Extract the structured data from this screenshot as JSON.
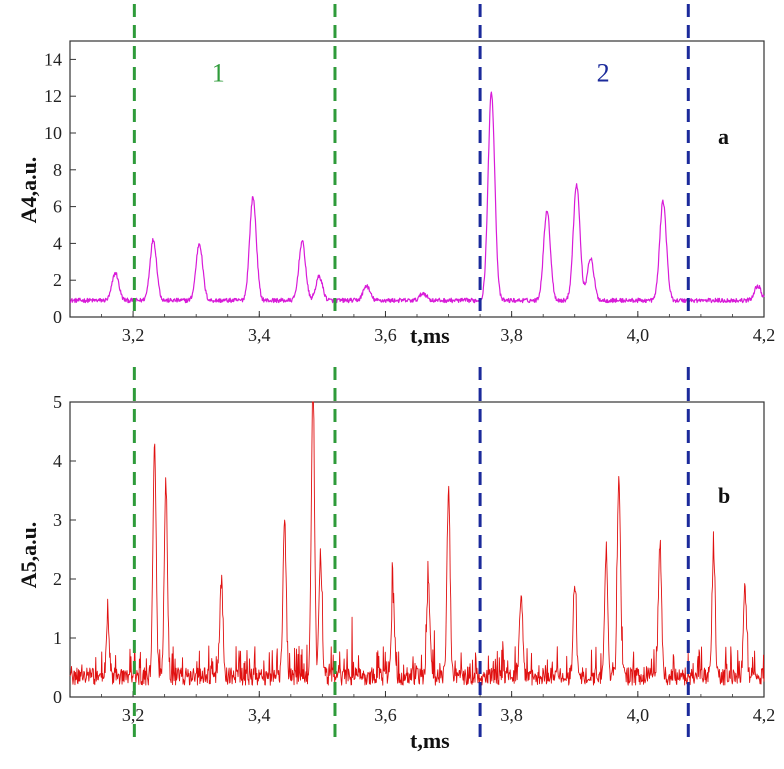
{
  "chart_data": [
    {
      "panel": "a",
      "type": "line",
      "title": "",
      "panel_letter": "a",
      "xlabel": "t,ms",
      "ylabel": "A4,a.u.",
      "xlim": [
        3.1,
        4.2
      ],
      "ylim": [
        0,
        15
      ],
      "xticks": [
        3.2,
        3.4,
        3.6,
        3.8,
        4.0,
        4.2
      ],
      "xtick_labels": [
        "3,2",
        "3,4",
        "3,6",
        "3,8",
        "4,0",
        "4,2"
      ],
      "yticks": [
        0,
        2,
        4,
        6,
        8,
        10,
        12,
        14
      ],
      "ytick_labels": [
        "0",
        "2",
        "4",
        "6",
        "8",
        "10",
        "12",
        "14"
      ],
      "series": [
        {
          "name": "A4",
          "color": "#d81bd8",
          "baseline": 0.9,
          "noise": 0.12,
          "peaks": [
            {
              "t": 3.172,
              "amp": 1.5
            },
            {
              "t": 3.232,
              "amp": 3.3
            },
            {
              "t": 3.305,
              "amp": 3.1
            },
            {
              "t": 3.39,
              "amp": 5.6
            },
            {
              "t": 3.468,
              "amp": 3.2
            },
            {
              "t": 3.495,
              "amp": 1.3
            },
            {
              "t": 3.57,
              "amp": 0.8
            },
            {
              "t": 3.66,
              "amp": 0.4
            },
            {
              "t": 3.768,
              "amp": 11.3
            },
            {
              "t": 3.856,
              "amp": 4.9
            },
            {
              "t": 3.903,
              "amp": 6.3
            },
            {
              "t": 3.925,
              "amp": 2.3
            },
            {
              "t": 4.04,
              "amp": 5.4
            },
            {
              "t": 4.19,
              "amp": 0.8
            }
          ]
        }
      ],
      "vlines": [
        {
          "t": 3.202,
          "color": "#2e9b3a",
          "group": "1"
        },
        {
          "t": 3.52,
          "color": "#2e9b3a",
          "group": "1"
        },
        {
          "t": 3.75,
          "color": "#1b2a9b",
          "group": "2"
        },
        {
          "t": 4.08,
          "color": "#1b2a9b",
          "group": "2"
        }
      ],
      "region_labels": [
        {
          "text": "1",
          "t": 3.335,
          "y": 12.8,
          "color": "#2e9b3a"
        },
        {
          "text": "2",
          "t": 3.945,
          "y": 12.8,
          "color": "#1b2a9b"
        }
      ]
    },
    {
      "panel": "b",
      "type": "line",
      "title": "",
      "panel_letter": "b",
      "xlabel": "t,ms",
      "ylabel": "A5,a.u.",
      "xlim": [
        3.1,
        4.2
      ],
      "ylim": [
        0,
        5
      ],
      "xticks": [
        3.2,
        3.4,
        3.6,
        3.8,
        4.0,
        4.2
      ],
      "xtick_labels": [
        "3,2",
        "3,4",
        "3,6",
        "3,8",
        "4,0",
        "4,2"
      ],
      "yticks": [
        0,
        1,
        2,
        3,
        4,
        5
      ],
      "ytick_labels": [
        "0",
        "1",
        "2",
        "3",
        "4",
        "5"
      ],
      "series": [
        {
          "name": "A5",
          "color": "#e01010",
          "baseline": 0.2,
          "noise": 0.3,
          "peaks": [
            {
              "t": 3.16,
              "amp": 0.9
            },
            {
              "t": 3.234,
              "amp": 4.0
            },
            {
              "t": 3.252,
              "amp": 3.3
            },
            {
              "t": 3.34,
              "amp": 1.6
            },
            {
              "t": 3.44,
              "amp": 2.7
            },
            {
              "t": 3.485,
              "amp": 4.8
            },
            {
              "t": 3.497,
              "amp": 2.0
            },
            {
              "t": 3.612,
              "amp": 1.4
            },
            {
              "t": 3.668,
              "amp": 1.6
            },
            {
              "t": 3.7,
              "amp": 3.2
            },
            {
              "t": 3.815,
              "amp": 1.4
            },
            {
              "t": 3.9,
              "amp": 1.6
            },
            {
              "t": 3.95,
              "amp": 2.0
            },
            {
              "t": 3.97,
              "amp": 3.4
            },
            {
              "t": 4.035,
              "amp": 2.3
            },
            {
              "t": 4.12,
              "amp": 2.1
            },
            {
              "t": 4.17,
              "amp": 1.5
            }
          ]
        }
      ],
      "vlines": [
        {
          "t": 3.202,
          "color": "#2e9b3a",
          "group": "1"
        },
        {
          "t": 3.52,
          "color": "#2e9b3a",
          "group": "1"
        },
        {
          "t": 3.75,
          "color": "#1b2a9b",
          "group": "2"
        },
        {
          "t": 4.08,
          "color": "#1b2a9b",
          "group": "2"
        }
      ],
      "region_labels": []
    }
  ]
}
